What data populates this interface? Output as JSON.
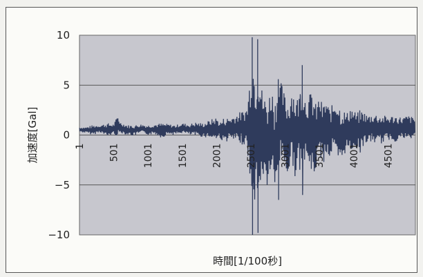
{
  "chart_data": {
    "type": "line",
    "xlabel": "時間[1/100秒]",
    "ylabel": "加速度[Gal]",
    "ylim": [
      -10,
      10
    ],
    "xlim": [
      1,
      4900
    ],
    "y_ticks": [
      10,
      5,
      0,
      -5,
      -10
    ],
    "x_tick_labels": [
      "1",
      "501",
      "1001",
      "1501",
      "2001",
      "2501",
      "3001",
      "3501",
      "4001",
      "4501"
    ],
    "x_tick_values": [
      1,
      501,
      1001,
      1501,
      2001,
      2501,
      3001,
      3501,
      4001,
      4501
    ],
    "grid": "horizontal",
    "legend": "none",
    "colors": {
      "plot_bg": "#c7c7ce",
      "series": "#2f3b5c",
      "grid": "#333333"
    },
    "series": [
      {
        "x": [
          1,
          100,
          200,
          300,
          400,
          500,
          560,
          600,
          700,
          800,
          900,
          1000,
          1100,
          1200,
          1300,
          1400,
          1500,
          1600,
          1700,
          1800,
          1900,
          2000,
          2050,
          2100,
          2200,
          2300,
          2400,
          2450,
          2480,
          2520,
          2550,
          2580,
          2600,
          2650,
          2700,
          2750,
          2800,
          2850,
          2900,
          2950,
          3000,
          3050,
          3100,
          3150,
          3200,
          3250,
          3300,
          3350,
          3400,
          3450,
          3500,
          3550,
          3600,
          3650,
          3700,
          3750,
          3800,
          3850,
          3900,
          3950,
          4000,
          4050,
          4100,
          4150,
          4200,
          4300,
          4400,
          4500,
          4600,
          4700,
          4800,
          4900
        ],
        "upper": [
          0.8,
          0.8,
          1.0,
          1.0,
          1.2,
          1.1,
          2.0,
          1.3,
          1.0,
          1.0,
          1.1,
          1.0,
          1.1,
          1.2,
          1.1,
          1.0,
          1.2,
          1.1,
          1.3,
          1.2,
          1.5,
          1.8,
          1.3,
          1.7,
          1.8,
          2.2,
          2.5,
          3.0,
          5.5,
          9.8,
          7.0,
          6.0,
          9.6,
          5.0,
          4.0,
          3.8,
          5.0,
          3.5,
          5.6,
          5.2,
          4.0,
          3.5,
          5.0,
          4.0,
          3.8,
          7.0,
          3.5,
          4.0,
          4.8,
          3.0,
          4.0,
          3.0,
          3.7,
          2.6,
          3.2,
          4.0,
          3.0,
          2.6,
          2.2,
          3.0,
          2.5,
          2.2,
          2.6,
          2.4,
          2.0,
          2.2,
          2.0,
          1.9,
          2.0,
          1.8,
          2.0,
          1.7
        ],
        "lower": [
          0.3,
          0.2,
          0.0,
          0.3,
          -0.2,
          0.1,
          -0.2,
          0.2,
          0.0,
          -0.1,
          0.2,
          0.0,
          0.1,
          -0.3,
          0.1,
          0.0,
          0.2,
          0.0,
          -0.1,
          -0.2,
          -0.3,
          -0.5,
          -0.3,
          -0.8,
          -0.5,
          -0.8,
          -1.0,
          -1.5,
          -4.0,
          -10.0,
          -7.0,
          -5.5,
          -9.8,
          -4.0,
          -5.0,
          -5.5,
          -3.5,
          -6.5,
          -4.0,
          -2.5,
          -3.5,
          -4.5,
          -2.5,
          -4.5,
          -3.0,
          -6.0,
          -2.5,
          -3.2,
          -5.0,
          -3.5,
          -2.0,
          -3.0,
          -2.0,
          -2.5,
          -1.5,
          -2.8,
          -3.5,
          -2.2,
          -1.5,
          -2.0,
          -1.2,
          -1.5,
          -1.8,
          -1.0,
          -0.8,
          -0.8,
          -0.9,
          -0.5,
          -0.7,
          -0.4,
          -0.6,
          -0.3
        ]
      }
    ]
  }
}
